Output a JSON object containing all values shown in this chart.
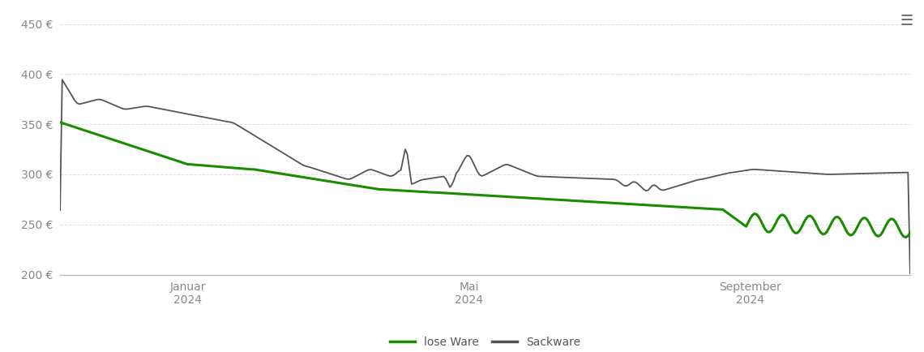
{
  "ylim": [
    200,
    460
  ],
  "yticks": [
    200,
    250,
    300,
    350,
    400,
    450
  ],
  "ytick_labels": [
    "200 €",
    "250 €",
    "300 €",
    "350 €",
    "400 €",
    "450 €"
  ],
  "legend_labels": [
    "lose Ware",
    "Sackware"
  ],
  "line_green_color": "#1a8c00",
  "line_dark_color": "#555555",
  "grid_color": "#e0e0e0",
  "background_color": "#ffffff",
  "menu_icon_color": "#666666",
  "n_points": 400
}
